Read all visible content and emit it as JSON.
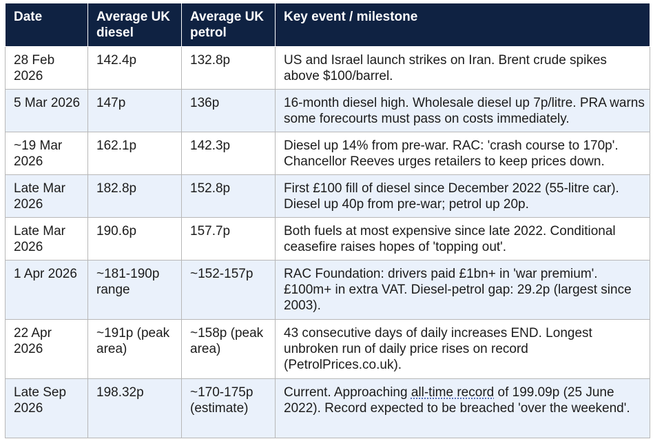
{
  "table": {
    "headers": {
      "date": "Date",
      "diesel": "Average UK diesel",
      "petrol": "Average UK petrol",
      "event": "Key event / milestone"
    },
    "rows": [
      {
        "date": "28 Feb 2026",
        "diesel": "142.4p",
        "petrol": "132.8p",
        "event": "US and Israel launch strikes on Iran. Brent crude spikes above $100/barrel."
      },
      {
        "date": "5 Mar 2026",
        "diesel": "147p",
        "petrol": "136p",
        "event": "16-month diesel high. Wholesale diesel up 7p/litre. PRA warns some forecourts must pass on costs immediately."
      },
      {
        "date": "~19 Mar 2026",
        "diesel": "162.1p",
        "petrol": "142.3p",
        "event": "Diesel up 14% from pre-war. RAC: 'crash course to 170p'. Chancellor Reeves urges retailers to keep prices down."
      },
      {
        "date": "Late Mar 2026",
        "diesel": "182.8p",
        "petrol": "152.8p",
        "event": "First £100 fill of diesel since December 2022 (55-litre car). Diesel up 40p from pre-war; petrol up 20p."
      },
      {
        "date": "Late Mar 2026",
        "diesel": "190.6p",
        "petrol": "157.7p",
        "event": "Both fuels at most expensive since late 2022. Conditional ceasefire raises hopes of 'topping out'."
      },
      {
        "date": "1 Apr 2026",
        "diesel": "~181-190p range",
        "petrol": "~152-157p",
        "event": "RAC Foundation: drivers paid £1bn+ in 'war premium'. £100m+ in extra VAT. Diesel-petrol gap: 29.2p (largest since 2003)."
      },
      {
        "date": "22 Apr 2026",
        "diesel": "~191p (peak area)",
        "petrol": "~158p (peak area)",
        "event": "43 consecutive days of daily increases END. Longest unbroken run of daily price rises on record (PetrolPrices.co.uk)."
      },
      {
        "date": "Late Sep 2026",
        "diesel": "198.32p",
        "petrol": "~170-175p (estimate)",
        "event_pre": "Current. Approaching ",
        "event_link": "all-time record",
        "event_post": " of 199.09p (25 June 2022). Record expected to be breached 'over the weekend'."
      }
    ]
  }
}
